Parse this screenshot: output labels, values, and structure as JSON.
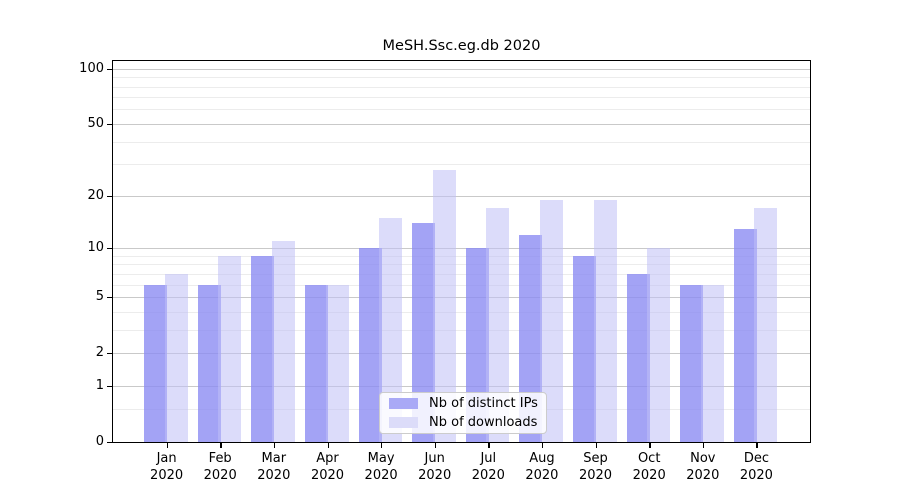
{
  "chart_data": {
    "type": "bar",
    "title": "MeSH.Ssc.eg.db 2020",
    "categories": [
      "Jan",
      "Feb",
      "Mar",
      "Apr",
      "May",
      "Jun",
      "Jul",
      "Aug",
      "Sep",
      "Oct",
      "Nov",
      "Dec"
    ],
    "category_year": "2020",
    "series": [
      {
        "name": "Nb of distinct IPs",
        "values": [
          6,
          6,
          9,
          6,
          10,
          14,
          10,
          12,
          9,
          7,
          6,
          13
        ],
        "fill": "rgba(140,140,242,0.8)",
        "swatch": "#a9a9f6"
      },
      {
        "name": "Nb of downloads",
        "values": [
          7,
          9,
          11,
          6,
          15,
          28,
          17,
          19,
          19,
          10,
          6,
          17
        ],
        "fill": "rgba(191,191,246,0.55)",
        "swatch": "#dcdcf9"
      }
    ],
    "yscale": "log1p",
    "ylim": [
      0,
      110
    ],
    "y_major_ticks": [
      100,
      50,
      20,
      10,
      5,
      2,
      1,
      0
    ],
    "y_minor_gridlines": [
      0.5,
      3,
      4,
      6,
      7,
      8,
      9,
      30,
      40,
      60,
      70,
      80,
      90
    ],
    "grid": true,
    "legend_position": "lower center"
  },
  "colors": {
    "major_grid": "#c9c9c9",
    "minor_grid": "#ececec",
    "spine": "#000000",
    "background": "#ffffff"
  }
}
